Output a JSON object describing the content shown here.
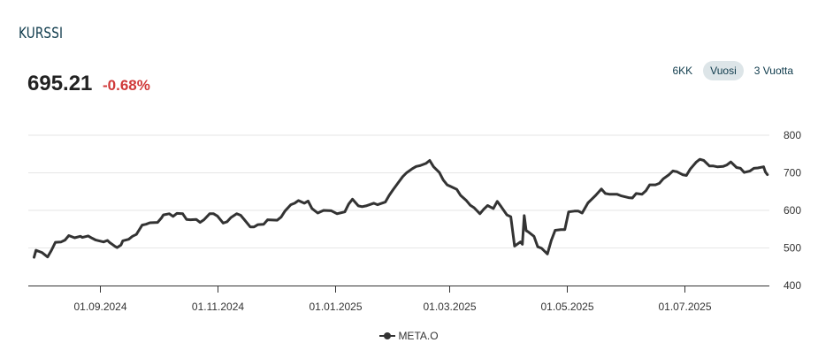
{
  "header": {
    "title": "KURSSI",
    "price": "695.21",
    "change": "-0.68%"
  },
  "range_buttons": [
    {
      "label": "6KK",
      "active": false
    },
    {
      "label": "Vuosi",
      "active": true
    },
    {
      "label": "3 Vuotta",
      "active": false
    }
  ],
  "colors": {
    "line": "#333333",
    "negative": "#d03a3a",
    "title": "#0e3a4b",
    "active_button": "#dde5e8"
  },
  "chart_data": {
    "type": "line",
    "title": "",
    "xlabel": "",
    "ylabel": "",
    "ylim": [
      400,
      800
    ],
    "y_ticks": [
      400,
      500,
      600,
      700,
      800
    ],
    "x_range": [
      "2024-07-26",
      "2025-08-14"
    ],
    "x_ticks": [
      {
        "date": "2024-09-01",
        "label": "01.09.2024"
      },
      {
        "date": "2024-11-01",
        "label": "01.11.2024"
      },
      {
        "date": "2025-01-01",
        "label": "01.01.2025"
      },
      {
        "date": "2025-03-01",
        "label": "01.03.2025"
      },
      {
        "date": "2025-05-01",
        "label": "01.05.2025"
      },
      {
        "date": "2025-07-01",
        "label": "01.07.2025"
      }
    ],
    "grid": true,
    "legend": "bottom",
    "series": [
      {
        "name": "META.O",
        "points": [
          [
            "2024-07-29",
            475
          ],
          [
            "2024-07-30",
            494
          ],
          [
            "2024-08-02",
            488
          ],
          [
            "2024-08-05",
            476
          ],
          [
            "2024-08-07",
            494
          ],
          [
            "2024-08-09",
            515
          ],
          [
            "2024-08-12",
            516
          ],
          [
            "2024-08-14",
            521
          ],
          [
            "2024-08-16",
            533
          ],
          [
            "2024-08-19",
            527
          ],
          [
            "2024-08-22",
            531
          ],
          [
            "2024-08-23",
            528
          ],
          [
            "2024-08-26",
            532
          ],
          [
            "2024-08-28",
            526
          ],
          [
            "2024-08-30",
            521
          ],
          [
            "2024-09-03",
            516
          ],
          [
            "2024-09-05",
            520
          ],
          [
            "2024-09-06",
            515
          ],
          [
            "2024-09-09",
            504
          ],
          [
            "2024-09-10",
            501
          ],
          [
            "2024-09-12",
            508
          ],
          [
            "2024-09-13",
            519
          ],
          [
            "2024-09-16",
            523
          ],
          [
            "2024-09-18",
            531
          ],
          [
            "2024-09-20",
            536
          ],
          [
            "2024-09-23",
            561
          ],
          [
            "2024-09-25",
            563
          ],
          [
            "2024-09-27",
            567
          ],
          [
            "2024-10-01",
            568
          ],
          [
            "2024-10-03",
            580
          ],
          [
            "2024-10-04",
            588
          ],
          [
            "2024-10-07",
            591
          ],
          [
            "2024-10-09",
            584
          ],
          [
            "2024-10-11",
            592
          ],
          [
            "2024-10-14",
            591
          ],
          [
            "2024-10-16",
            576
          ],
          [
            "2024-10-18",
            575
          ],
          [
            "2024-10-21",
            576
          ],
          [
            "2024-10-23",
            568
          ],
          [
            "2024-10-25",
            575
          ],
          [
            "2024-10-28",
            591
          ],
          [
            "2024-10-30",
            591
          ],
          [
            "2024-11-01",
            585
          ],
          [
            "2024-11-04",
            566
          ],
          [
            "2024-11-06",
            570
          ],
          [
            "2024-11-08",
            581
          ],
          [
            "2024-11-11",
            591
          ],
          [
            "2024-11-13",
            587
          ],
          [
            "2024-11-15",
            575
          ],
          [
            "2024-11-18",
            556
          ],
          [
            "2024-11-20",
            556
          ],
          [
            "2024-11-22",
            562
          ],
          [
            "2024-11-25",
            563
          ],
          [
            "2024-11-27",
            575
          ],
          [
            "2024-12-02",
            574
          ],
          [
            "2024-12-04",
            582
          ],
          [
            "2024-12-06",
            598
          ],
          [
            "2024-12-09",
            615
          ],
          [
            "2024-12-11",
            619
          ],
          [
            "2024-12-13",
            626
          ],
          [
            "2024-12-16",
            619
          ],
          [
            "2024-12-18",
            625
          ],
          [
            "2024-12-20",
            605
          ],
          [
            "2024-12-23",
            593
          ],
          [
            "2024-12-26",
            600
          ],
          [
            "2024-12-30",
            599
          ],
          [
            "2025-01-02",
            591
          ],
          [
            "2025-01-06",
            596
          ],
          [
            "2025-01-08",
            617
          ],
          [
            "2025-01-10",
            630
          ],
          [
            "2025-01-13",
            612
          ],
          [
            "2025-01-15",
            610
          ],
          [
            "2025-01-17",
            612
          ],
          [
            "2025-01-21",
            619
          ],
          [
            "2025-01-23",
            615
          ],
          [
            "2025-01-27",
            622
          ],
          [
            "2025-01-29",
            640
          ],
          [
            "2025-01-31",
            655
          ],
          [
            "2025-02-03",
            676
          ],
          [
            "2025-02-05",
            690
          ],
          [
            "2025-02-07",
            700
          ],
          [
            "2025-02-10",
            711
          ],
          [
            "2025-02-12",
            717
          ],
          [
            "2025-02-14",
            719
          ],
          [
            "2025-02-17",
            725
          ],
          [
            "2025-02-19",
            733
          ],
          [
            "2025-02-21",
            716
          ],
          [
            "2025-02-24",
            701
          ],
          [
            "2025-02-26",
            681
          ],
          [
            "2025-02-28",
            668
          ],
          [
            "2025-03-03",
            661
          ],
          [
            "2025-03-05",
            656
          ],
          [
            "2025-03-07",
            640
          ],
          [
            "2025-03-10",
            626
          ],
          [
            "2025-03-12",
            614
          ],
          [
            "2025-03-14",
            607
          ],
          [
            "2025-03-17",
            591
          ],
          [
            "2025-03-19",
            603
          ],
          [
            "2025-03-21",
            613
          ],
          [
            "2025-03-24",
            605
          ],
          [
            "2025-03-26",
            624
          ],
          [
            "2025-03-28",
            610
          ],
          [
            "2025-03-31",
            588
          ],
          [
            "2025-04-02",
            583
          ],
          [
            "2025-04-04",
            505
          ],
          [
            "2025-04-07",
            516
          ],
          [
            "2025-04-08",
            510
          ],
          [
            "2025-04-09",
            586
          ],
          [
            "2025-04-10",
            546
          ],
          [
            "2025-04-11",
            543
          ],
          [
            "2025-04-14",
            531
          ],
          [
            "2025-04-16",
            503
          ],
          [
            "2025-04-18",
            499
          ],
          [
            "2025-04-21",
            484
          ],
          [
            "2025-04-23",
            520
          ],
          [
            "2025-04-25",
            547
          ],
          [
            "2025-04-28",
            549
          ],
          [
            "2025-04-30",
            549
          ],
          [
            "2025-05-02",
            596
          ],
          [
            "2025-05-05",
            598
          ],
          [
            "2025-05-07",
            598
          ],
          [
            "2025-05-09",
            593
          ],
          [
            "2025-05-12",
            620
          ],
          [
            "2025-05-14",
            630
          ],
          [
            "2025-05-16",
            640
          ],
          [
            "2025-05-19",
            657
          ],
          [
            "2025-05-21",
            645
          ],
          [
            "2025-05-23",
            643
          ],
          [
            "2025-05-27",
            643
          ],
          [
            "2025-05-29",
            639
          ],
          [
            "2025-06-02",
            634
          ],
          [
            "2025-06-04",
            633
          ],
          [
            "2025-06-06",
            645
          ],
          [
            "2025-06-09",
            643
          ],
          [
            "2025-06-11",
            652
          ],
          [
            "2025-06-13",
            668
          ],
          [
            "2025-06-16",
            668
          ],
          [
            "2025-06-18",
            672
          ],
          [
            "2025-06-20",
            684
          ],
          [
            "2025-06-23",
            695
          ],
          [
            "2025-06-25",
            705
          ],
          [
            "2025-06-27",
            703
          ],
          [
            "2025-06-30",
            695
          ],
          [
            "2025-07-02",
            693
          ],
          [
            "2025-07-04",
            710
          ],
          [
            "2025-07-07",
            728
          ],
          [
            "2025-07-09",
            736
          ],
          [
            "2025-07-11",
            733
          ],
          [
            "2025-07-14",
            718
          ],
          [
            "2025-07-16",
            718
          ],
          [
            "2025-07-18",
            716
          ],
          [
            "2025-07-21",
            717
          ],
          [
            "2025-07-23",
            721
          ],
          [
            "2025-07-25",
            729
          ],
          [
            "2025-07-28",
            714
          ],
          [
            "2025-07-30",
            712
          ],
          [
            "2025-08-01",
            701
          ],
          [
            "2025-08-04",
            705
          ],
          [
            "2025-08-06",
            712
          ],
          [
            "2025-08-08",
            713
          ],
          [
            "2025-08-11",
            716
          ],
          [
            "2025-08-12",
            702
          ],
          [
            "2025-08-13",
            695
          ]
        ]
      }
    ]
  }
}
